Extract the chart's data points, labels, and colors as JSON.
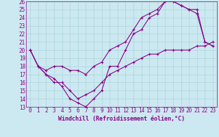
{
  "xlabel": "Windchill (Refroidissement éolien,°C)",
  "bg_color": "#cce8f0",
  "line_color": "#880088",
  "grid_color": "#aad4dd",
  "xlim": [
    -0.5,
    23.5
  ],
  "ylim": [
    13,
    26
  ],
  "xticks": [
    0,
    1,
    2,
    3,
    4,
    5,
    6,
    7,
    8,
    9,
    10,
    11,
    12,
    13,
    14,
    15,
    16,
    17,
    18,
    19,
    20,
    21,
    22,
    23
  ],
  "yticks": [
    13,
    14,
    15,
    16,
    17,
    18,
    19,
    20,
    21,
    22,
    23,
    24,
    25,
    26
  ],
  "line1_x": [
    0,
    1,
    2,
    3,
    4,
    5,
    6,
    7,
    8,
    9,
    10,
    11,
    12,
    13,
    14,
    15,
    16,
    17,
    18,
    19,
    20,
    21,
    22,
    23
  ],
  "line1_y": [
    20,
    18,
    17,
    16.5,
    15.5,
    14,
    13.5,
    13,
    14,
    15,
    18,
    18,
    20,
    22,
    22.5,
    24,
    24.5,
    26,
    26,
    25.5,
    25,
    24.5,
    21,
    20.5
  ],
  "line2_x": [
    0,
    1,
    2,
    3,
    4,
    5,
    6,
    7,
    8,
    9,
    10,
    11,
    12,
    13,
    14,
    15,
    16,
    17,
    18,
    19,
    20,
    21,
    22,
    23
  ],
  "line2_y": [
    20,
    18,
    17.5,
    18,
    18,
    17.5,
    17.5,
    17,
    18,
    18.5,
    20,
    20.5,
    21,
    22.5,
    24,
    24.5,
    25,
    26,
    26,
    25.5,
    25,
    25,
    21,
    20.5
  ],
  "line3_x": [
    0,
    1,
    2,
    3,
    4,
    5,
    6,
    7,
    8,
    9,
    10,
    11,
    12,
    13,
    14,
    15,
    16,
    17,
    18,
    19,
    20,
    21,
    22,
    23
  ],
  "line3_y": [
    20,
    18,
    17,
    16,
    16,
    15,
    14,
    14.5,
    15,
    16,
    17,
    17.5,
    18,
    18.5,
    19,
    19.5,
    19.5,
    20,
    20,
    20,
    20,
    20.5,
    20.5,
    21
  ],
  "tick_fontsize": 5.5,
  "xlabel_fontsize": 6,
  "marker_size": 3
}
